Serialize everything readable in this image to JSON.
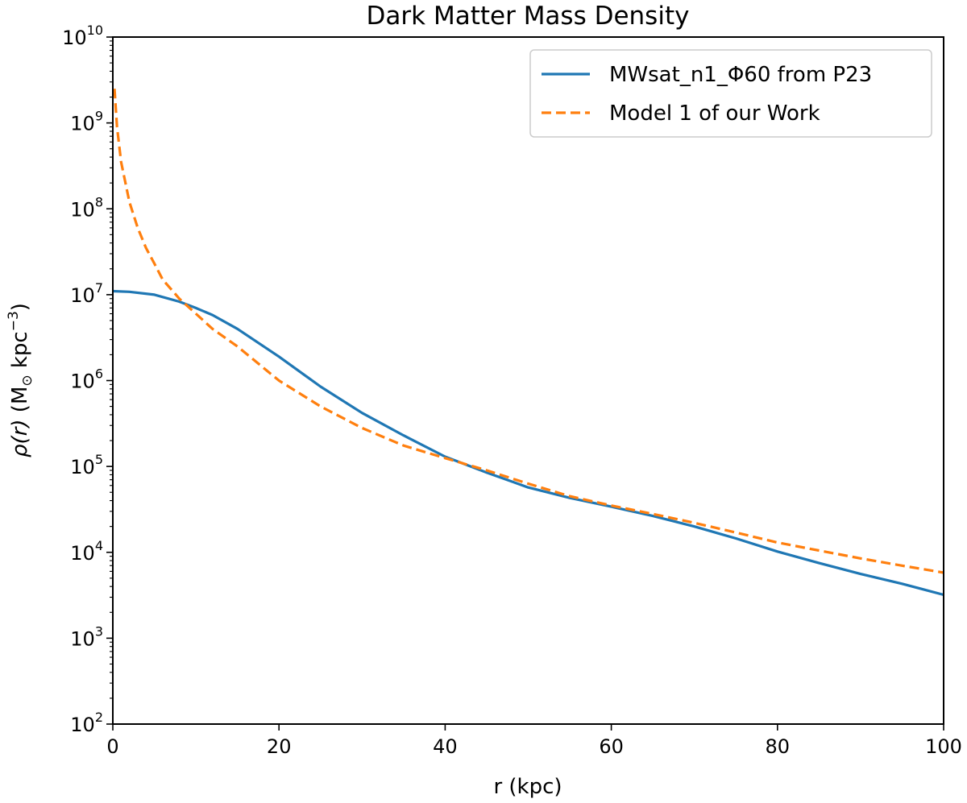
{
  "chart_data": {
    "type": "line",
    "title": "Dark Matter Mass Density",
    "xlabel": "r (kpc)",
    "ylabel": {
      "symbol": "ρ(r)",
      "unit_open": "(M",
      "unit_sub": "⊙",
      "unit_mid": " kpc",
      "unit_sup": "−3",
      "unit_close": ")"
    },
    "xlim": [
      0,
      100
    ],
    "ylim": [
      100,
      10000000000
    ],
    "yscale": "log",
    "x_ticks": [
      {
        "value": 0,
        "label": "0"
      },
      {
        "value": 20,
        "label": "20"
      },
      {
        "value": 40,
        "label": "40"
      },
      {
        "value": 60,
        "label": "60"
      },
      {
        "value": 80,
        "label": "80"
      },
      {
        "value": 100,
        "label": "100"
      }
    ],
    "y_ticks": [
      {
        "exp": 2,
        "base": "10",
        "sup": "2"
      },
      {
        "exp": 3,
        "base": "10",
        "sup": "3"
      },
      {
        "exp": 4,
        "base": "10",
        "sup": "4"
      },
      {
        "exp": 5,
        "base": "10",
        "sup": "5"
      },
      {
        "exp": 6,
        "base": "10",
        "sup": "6"
      },
      {
        "exp": 7,
        "base": "10",
        "sup": "7"
      },
      {
        "exp": 8,
        "base": "10",
        "sup": "8"
      },
      {
        "exp": 9,
        "base": "10",
        "sup": "9"
      },
      {
        "exp": 10,
        "base": "10",
        "sup": "10"
      }
    ],
    "grid": false,
    "legend_position": "top-right",
    "series": [
      {
        "name": "MWsat_n1_Φ60 from P23",
        "color": "#1f77b4",
        "style": "solid",
        "x": [
          0,
          2,
          5,
          8,
          10,
          12,
          15,
          20,
          25,
          30,
          35,
          40,
          45,
          50,
          55,
          60,
          65,
          70,
          75,
          80,
          85,
          90,
          95,
          100
        ],
        "y": [
          11000000,
          10800000,
          10000000,
          8300000,
          7000000,
          5800000,
          4000000,
          1900000,
          850000,
          420000,
          230000,
          130000,
          85000,
          57000,
          43000,
          34000,
          26500,
          20000,
          14500,
          10200,
          7500,
          5600,
          4300,
          3200
        ]
      },
      {
        "name": "Model 1 of our Work",
        "color": "#ff7f0e",
        "style": "dashed",
        "x": [
          0.2,
          0.5,
          1,
          2,
          3,
          4,
          5,
          6,
          8,
          10,
          12,
          15,
          20,
          25,
          30,
          35,
          40,
          45,
          50,
          55,
          60,
          65,
          70,
          75,
          80,
          85,
          90,
          95,
          100
        ],
        "y": [
          2500000000,
          900000000,
          350000000,
          120000000,
          60000000,
          35000000,
          23000000,
          15000000,
          9000000,
          6000000,
          4000000,
          2500000,
          1000000,
          500000,
          280000,
          175000,
          125000,
          90000,
          63000,
          45000,
          35000,
          28000,
          22000,
          17000,
          13000,
          10500,
          8500,
          7000,
          5800
        ]
      }
    ]
  }
}
